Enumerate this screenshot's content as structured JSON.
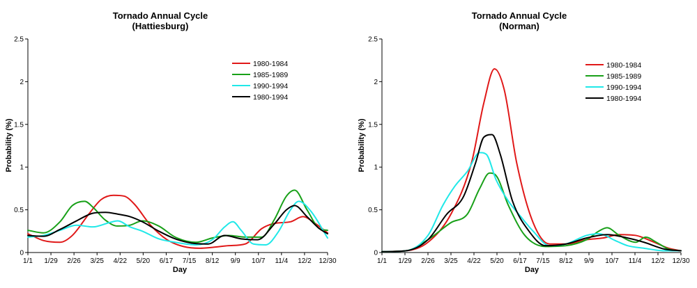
{
  "chart_data": [
    {
      "type": "line",
      "title": "Tornado Annual Cycle",
      "subtitle": "(Hattiesburg)",
      "xlabel": "Day",
      "ylabel": "Probability (%)",
      "ylim": [
        0,
        2.5
      ],
      "yticks": [
        "0",
        "0.5",
        "1",
        "1.5",
        "2",
        "2.5"
      ],
      "xticks": [
        "1/1",
        "1/29",
        "2/26",
        "3/25",
        "4/22",
        "5/20",
        "6/17",
        "7/15",
        "8/12",
        "9/9",
        "10/7",
        "11/4",
        "12/2",
        "12/30"
      ],
      "xlim": [
        1,
        365
      ],
      "grid": false,
      "legend_position": "top-right",
      "series": [
        {
          "name": "1980-1984",
          "color": "#e01818",
          "x": [
            1,
            20,
            40,
            55,
            75,
            90,
            105,
            118,
            130,
            150,
            170,
            190,
            210,
            225,
            245,
            265,
            285,
            300,
            320,
            335,
            350,
            365
          ],
          "y": [
            0.22,
            0.14,
            0.12,
            0.2,
            0.45,
            0.62,
            0.67,
            0.66,
            0.57,
            0.32,
            0.15,
            0.07,
            0.05,
            0.06,
            0.08,
            0.1,
            0.28,
            0.34,
            0.36,
            0.42,
            0.34,
            0.23
          ]
        },
        {
          "name": "1985-1989",
          "color": "#18a018",
          "x": [
            1,
            20,
            40,
            55,
            70,
            80,
            95,
            110,
            125,
            140,
            160,
            180,
            205,
            225,
            245,
            265,
            285,
            300,
            315,
            325,
            340,
            355,
            365
          ],
          "y": [
            0.26,
            0.23,
            0.36,
            0.55,
            0.6,
            0.53,
            0.38,
            0.31,
            0.32,
            0.37,
            0.31,
            0.18,
            0.12,
            0.17,
            0.2,
            0.18,
            0.18,
            0.38,
            0.66,
            0.73,
            0.5,
            0.28,
            0.26
          ]
        },
        {
          "name": "1990-1994",
          "color": "#20e8e8",
          "x": [
            1,
            20,
            40,
            60,
            80,
            100,
            110,
            125,
            140,
            160,
            180,
            205,
            225,
            240,
            250,
            260,
            275,
            290,
            305,
            320,
            330,
            345,
            365
          ],
          "y": [
            0.18,
            0.2,
            0.26,
            0.32,
            0.3,
            0.35,
            0.37,
            0.3,
            0.25,
            0.16,
            0.12,
            0.09,
            0.15,
            0.3,
            0.36,
            0.26,
            0.1,
            0.09,
            0.24,
            0.5,
            0.6,
            0.48,
            0.17
          ]
        },
        {
          "name": "1980-1994",
          "color": "#000000",
          "x": [
            1,
            20,
            40,
            60,
            80,
            95,
            110,
            125,
            140,
            160,
            180,
            200,
            220,
            240,
            260,
            280,
            300,
            315,
            325,
            340,
            355,
            365
          ],
          "y": [
            0.2,
            0.19,
            0.27,
            0.37,
            0.46,
            0.47,
            0.45,
            0.42,
            0.36,
            0.25,
            0.16,
            0.11,
            0.1,
            0.2,
            0.16,
            0.15,
            0.33,
            0.5,
            0.55,
            0.42,
            0.28,
            0.22
          ]
        }
      ]
    },
    {
      "type": "line",
      "title": "Tornado Annual Cycle",
      "subtitle": "(Norman)",
      "xlabel": "Day",
      "ylabel": "Probability (%)",
      "ylim": [
        0,
        2.5
      ],
      "yticks": [
        "0",
        "0.5",
        "1",
        "1.5",
        "2",
        "2.5"
      ],
      "xticks": [
        "1/1",
        "1/29",
        "2/26",
        "3/25",
        "4/22",
        "5/20",
        "6/17",
        "7/15",
        "8/12",
        "9/9",
        "10/7",
        "11/4",
        "12/2",
        "12/30"
      ],
      "xlim": [
        1,
        365
      ],
      "grid": false,
      "legend_position": "top-right",
      "series": [
        {
          "name": "1980-1984",
          "color": "#e01818",
          "x": [
            1,
            30,
            57,
            85,
            110,
            125,
            138,
            150,
            165,
            185,
            205,
            225,
            250,
            270,
            290,
            310,
            330,
            350,
            365
          ],
          "y": [
            0.01,
            0.02,
            0.12,
            0.45,
            1.05,
            1.75,
            2.15,
            1.9,
            1.05,
            0.35,
            0.1,
            0.1,
            0.15,
            0.17,
            0.21,
            0.2,
            0.13,
            0.05,
            0.02
          ]
        },
        {
          "name": "1985-1989",
          "color": "#18a018",
          "x": [
            1,
            30,
            57,
            85,
            105,
            120,
            132,
            140,
            155,
            175,
            200,
            225,
            250,
            265,
            275,
            290,
            310,
            322,
            335,
            350,
            365
          ],
          "y": [
            0.01,
            0.02,
            0.15,
            0.35,
            0.45,
            0.75,
            0.93,
            0.9,
            0.55,
            0.2,
            0.07,
            0.08,
            0.15,
            0.25,
            0.29,
            0.2,
            0.12,
            0.18,
            0.12,
            0.04,
            0.02
          ]
        },
        {
          "name": "1990-1994",
          "color": "#20e8e8",
          "x": [
            1,
            30,
            57,
            75,
            90,
            105,
            120,
            128,
            140,
            155,
            170,
            185,
            205,
            225,
            250,
            265,
            285,
            300,
            320,
            345,
            365
          ],
          "y": [
            0.01,
            0.02,
            0.2,
            0.55,
            0.78,
            0.95,
            1.17,
            1.15,
            0.85,
            0.6,
            0.42,
            0.25,
            0.08,
            0.1,
            0.2,
            0.22,
            0.14,
            0.08,
            0.05,
            0.02,
            0.02
          ]
        },
        {
          "name": "1980-1994",
          "color": "#000000",
          "x": [
            1,
            30,
            57,
            80,
            100,
            115,
            125,
            135,
            145,
            160,
            180,
            200,
            225,
            250,
            275,
            300,
            320,
            345,
            365
          ],
          "y": [
            0.01,
            0.02,
            0.15,
            0.45,
            0.65,
            1.05,
            1.35,
            1.38,
            1.15,
            0.6,
            0.25,
            0.08,
            0.1,
            0.17,
            0.21,
            0.17,
            0.12,
            0.04,
            0.02
          ]
        }
      ]
    }
  ]
}
